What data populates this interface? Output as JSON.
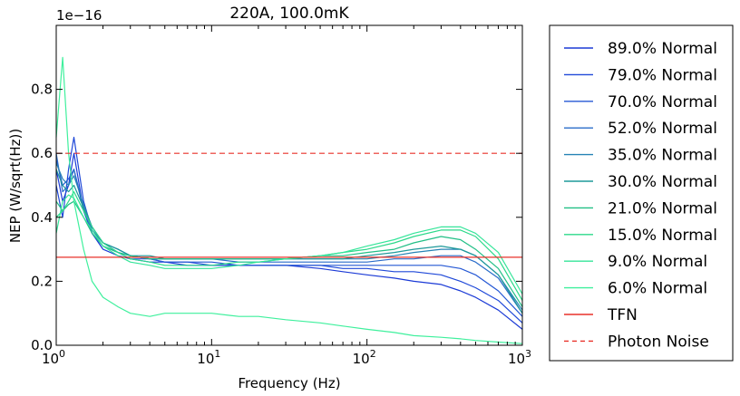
{
  "chart_data": {
    "type": "line",
    "title": "220A, 100.0mK",
    "xlabel": "Frequency (Hz)",
    "ylabel": "NEP (W/sqrt(Hz))",
    "y_multiplier_label": "1e−16",
    "xscale": "log",
    "xlim": [
      1,
      1000
    ],
    "ylim": [
      0.0,
      1.0
    ],
    "x_ticks": [
      {
        "value": 1,
        "base": "10",
        "exp": "0"
      },
      {
        "value": 10,
        "base": "10",
        "exp": "1"
      },
      {
        "value": 100,
        "base": "10",
        "exp": "2"
      },
      {
        "value": 1000,
        "base": "10",
        "exp": "3"
      }
    ],
    "y_ticks": [
      {
        "value": 0.0,
        "label": "0.0"
      },
      {
        "value": 0.2,
        "label": "0.2"
      },
      {
        "value": 0.4,
        "label": "0.4"
      },
      {
        "value": 0.6,
        "label": "0.6"
      },
      {
        "value": 0.8,
        "label": "0.8"
      }
    ],
    "legend_position": "outside-right",
    "grid": false,
    "x": [
      1,
      1.1,
      1.2,
      1.3,
      1.5,
      1.7,
      2,
      2.5,
      3,
      4,
      5,
      7,
      10,
      15,
      20,
      30,
      50,
      70,
      100,
      150,
      200,
      300,
      400,
      500,
      700,
      1000
    ],
    "series": [
      {
        "name": "89.0% Normal",
        "color": "#1b3ad6",
        "style": "solid",
        "values": [
          0.55,
          0.45,
          0.5,
          0.6,
          0.42,
          0.35,
          0.3,
          0.28,
          0.27,
          0.26,
          0.26,
          0.25,
          0.25,
          0.25,
          0.25,
          0.25,
          0.24,
          0.23,
          0.22,
          0.21,
          0.2,
          0.19,
          0.17,
          0.15,
          0.11,
          0.05
        ]
      },
      {
        "name": "79.0% Normal",
        "color": "#1f48d8",
        "style": "solid",
        "values": [
          0.5,
          0.4,
          0.55,
          0.65,
          0.45,
          0.36,
          0.32,
          0.3,
          0.28,
          0.27,
          0.26,
          0.26,
          0.25,
          0.25,
          0.25,
          0.25,
          0.25,
          0.24,
          0.24,
          0.23,
          0.23,
          0.22,
          0.2,
          0.18,
          0.14,
          0.07
        ]
      },
      {
        "name": "70.0% Normal",
        "color": "#2457d4",
        "style": "solid",
        "values": [
          0.58,
          0.5,
          0.52,
          0.55,
          0.42,
          0.35,
          0.31,
          0.29,
          0.27,
          0.27,
          0.26,
          0.26,
          0.26,
          0.25,
          0.25,
          0.25,
          0.25,
          0.25,
          0.25,
          0.25,
          0.25,
          0.25,
          0.24,
          0.22,
          0.17,
          0.09
        ]
      },
      {
        "name": "52.0% Normal",
        "color": "#2a6cc9",
        "style": "solid",
        "values": [
          0.6,
          0.48,
          0.5,
          0.55,
          0.43,
          0.36,
          0.32,
          0.29,
          0.28,
          0.27,
          0.27,
          0.27,
          0.27,
          0.26,
          0.26,
          0.26,
          0.26,
          0.26,
          0.26,
          0.27,
          0.27,
          0.28,
          0.28,
          0.26,
          0.21,
          0.1
        ]
      },
      {
        "name": "35.0% Normal",
        "color": "#2583b5",
        "style": "solid",
        "values": [
          0.57,
          0.52,
          0.5,
          0.53,
          0.44,
          0.37,
          0.32,
          0.3,
          0.28,
          0.27,
          0.27,
          0.27,
          0.27,
          0.27,
          0.27,
          0.27,
          0.27,
          0.27,
          0.27,
          0.28,
          0.29,
          0.3,
          0.3,
          0.28,
          0.22,
          0.11
        ]
      },
      {
        "name": "30.0% Normal",
        "color": "#1f9a9a",
        "style": "solid",
        "values": [
          0.55,
          0.5,
          0.48,
          0.5,
          0.43,
          0.37,
          0.32,
          0.3,
          0.28,
          0.28,
          0.27,
          0.27,
          0.27,
          0.27,
          0.27,
          0.27,
          0.27,
          0.27,
          0.28,
          0.29,
          0.3,
          0.31,
          0.3,
          0.28,
          0.22,
          0.1
        ]
      },
      {
        "name": "21.0% Normal",
        "color": "#22bf86",
        "style": "solid",
        "values": [
          0.45,
          0.42,
          0.44,
          0.45,
          0.4,
          0.35,
          0.31,
          0.29,
          0.28,
          0.27,
          0.27,
          0.27,
          0.27,
          0.27,
          0.27,
          0.27,
          0.28,
          0.28,
          0.29,
          0.3,
          0.32,
          0.34,
          0.33,
          0.3,
          0.24,
          0.12
        ]
      },
      {
        "name": "15.0% Normal",
        "color": "#2cd98a",
        "style": "solid",
        "values": [
          0.4,
          0.42,
          0.45,
          0.48,
          0.42,
          0.37,
          0.32,
          0.29,
          0.27,
          0.26,
          0.25,
          0.25,
          0.25,
          0.26,
          0.26,
          0.27,
          0.28,
          0.29,
          0.3,
          0.32,
          0.34,
          0.36,
          0.36,
          0.34,
          0.27,
          0.14
        ]
      },
      {
        "name": "9.0% Normal",
        "color": "#36e59a",
        "style": "solid",
        "values": [
          0.35,
          0.45,
          0.47,
          0.46,
          0.4,
          0.36,
          0.31,
          0.28,
          0.26,
          0.25,
          0.24,
          0.24,
          0.24,
          0.25,
          0.26,
          0.27,
          0.28,
          0.29,
          0.31,
          0.33,
          0.35,
          0.37,
          0.37,
          0.35,
          0.29,
          0.16
        ]
      },
      {
        "name": "6.0% Normal",
        "color": "#3ff09d",
        "style": "solid",
        "values": [
          0.65,
          0.9,
          0.6,
          0.45,
          0.3,
          0.2,
          0.15,
          0.12,
          0.1,
          0.09,
          0.1,
          0.1,
          0.1,
          0.09,
          0.09,
          0.08,
          0.07,
          0.06,
          0.05,
          0.04,
          0.03,
          0.025,
          0.02,
          0.015,
          0.01,
          0.005
        ]
      },
      {
        "name": "TFN",
        "color": "#e8312a",
        "style": "solid",
        "values": [
          0.275,
          0.275,
          0.275,
          0.275,
          0.275,
          0.275,
          0.275,
          0.275,
          0.275,
          0.275,
          0.275,
          0.275,
          0.275,
          0.275,
          0.275,
          0.275,
          0.275,
          0.275,
          0.275,
          0.275,
          0.275,
          0.275,
          0.275,
          0.275,
          0.275,
          0.275
        ]
      },
      {
        "name": "Photon Noise",
        "color": "#e8312a",
        "style": "dashed",
        "values": [
          0.6,
          0.6,
          0.6,
          0.6,
          0.6,
          0.6,
          0.6,
          0.6,
          0.6,
          0.6,
          0.6,
          0.6,
          0.6,
          0.6,
          0.6,
          0.6,
          0.6,
          0.6,
          0.6,
          0.6,
          0.6,
          0.6,
          0.6,
          0.6,
          0.6,
          0.6
        ]
      }
    ]
  }
}
